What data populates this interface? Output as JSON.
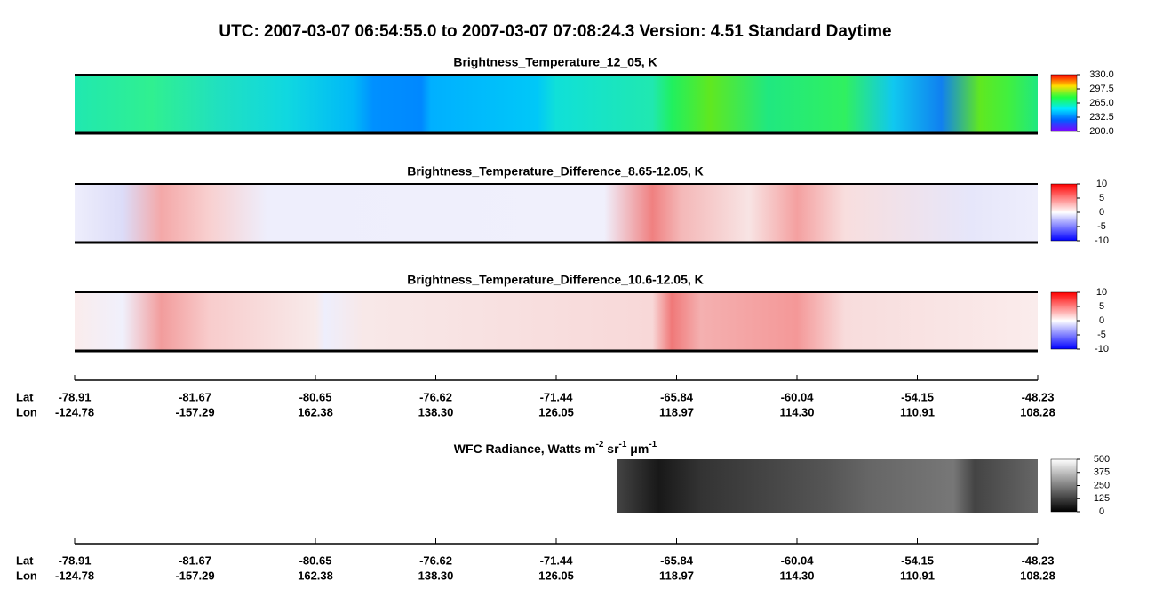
{
  "title": "UTC:  2007-03-07   06:54:55.0  to  2007-03-07   07:08:24.3    Version: 4.51  Standard Daytime",
  "panels": [
    {
      "title": "Brightness_Temperature_12_05, K",
      "colorbar_ticks": [
        "330.0",
        "297.5",
        "265.0",
        "232.5",
        "200.0"
      ]
    },
    {
      "title": "Brightness_Temperature_Difference_8.65-12.05, K",
      "colorbar_ticks": [
        "10",
        "5",
        "0",
        "-5",
        "-10"
      ]
    },
    {
      "title": "Brightness_Temperature_Difference_10.6-12.05, K",
      "colorbar_ticks": [
        "10",
        "5",
        "0",
        "-5",
        "-10"
      ]
    }
  ],
  "axes": [
    {
      "lat_label": "Lat",
      "lon_label": "Lon",
      "lat": [
        "-78.91",
        "-81.67",
        "-80.65",
        "-76.62",
        "-71.44",
        "-65.84",
        "-60.04",
        "-54.15",
        "-48.23"
      ],
      "lon": [
        "-124.78",
        "-157.29",
        "162.38",
        "138.30",
        "126.05",
        "118.97",
        "114.30",
        "110.91",
        "108.28"
      ]
    },
    {
      "lat_label": "Lat",
      "lon_label": "Lon",
      "lat": [
        "-78.91",
        "-81.67",
        "-80.65",
        "-76.62",
        "-71.44",
        "-65.84",
        "-60.04",
        "-54.15",
        "-48.23"
      ],
      "lon": [
        "-124.78",
        "-157.29",
        "162.38",
        "138.30",
        "126.05",
        "118.97",
        "114.30",
        "110.91",
        "108.28"
      ]
    }
  ],
  "wfc": {
    "title_parts": [
      "WFC Radiance, Watts m",
      "-2",
      " sr",
      "-1",
      " μm",
      "-1"
    ],
    "colorbar_ticks": [
      "500",
      "375",
      "250",
      "125",
      "0"
    ]
  }
}
